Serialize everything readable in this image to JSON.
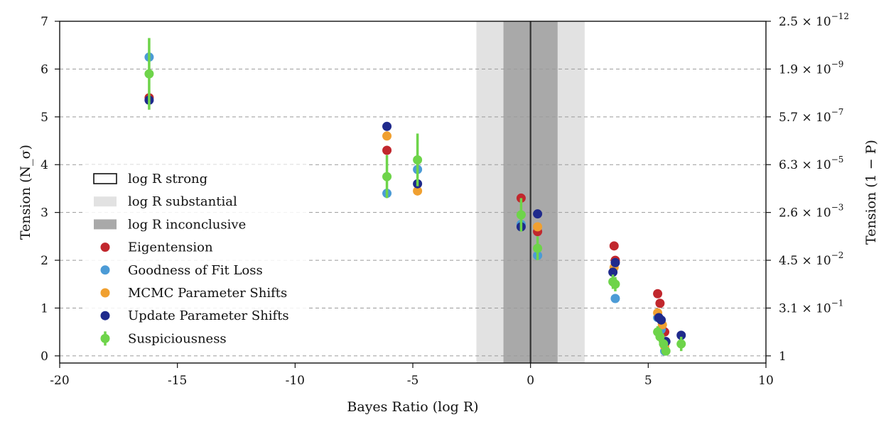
{
  "chart_data": {
    "type": "scatter",
    "xlabel": "Bayes Ratio (log R)",
    "ylabel": "Tension (N_σ)",
    "ylabel_right": "Tension (1 − P)",
    "xlim": [
      -20,
      10
    ],
    "ylim": [
      -0.15,
      7
    ],
    "x_ticks": [
      -20,
      -15,
      -10,
      -5,
      0,
      5,
      10
    ],
    "x_tick_labels": [
      "-20",
      "-15",
      "-10",
      "-5",
      "0",
      "5",
      "10"
    ],
    "y_ticks": [
      0,
      1,
      2,
      3,
      4,
      5,
      6,
      7
    ],
    "y_tick_labels": [
      "0",
      "1",
      "2",
      "3",
      "4",
      "5",
      "6",
      "7"
    ],
    "right_ticks": [
      {
        "y": 7,
        "mant": "2.5 × 10",
        "exp": "−12"
      },
      {
        "y": 6,
        "mant": "1.9 × 10",
        "exp": "−9"
      },
      {
        "y": 5,
        "mant": "5.7 × 10",
        "exp": "−7"
      },
      {
        "y": 4,
        "mant": "6.3 × 10",
        "exp": "−5"
      },
      {
        "y": 3,
        "mant": "2.6 × 10",
        "exp": "−3"
      },
      {
        "y": 2,
        "mant": "4.5 × 10",
        "exp": "−2"
      },
      {
        "y": 1,
        "mant": "3.1 × 10",
        "exp": "−1"
      },
      {
        "y": 0,
        "mant": "1",
        "exp": ""
      }
    ],
    "grid": "horizontal dashed",
    "legend_position": "center-left",
    "bands": [
      {
        "name": "log R substantial",
        "x": [
          -2.3,
          2.3
        ],
        "color": "#e2e2e2"
      },
      {
        "name": "log R inconclusive",
        "x": [
          -1.15,
          1.15
        ],
        "color": "#a9a9a9"
      }
    ],
    "vline": 0,
    "legend": [
      {
        "kind": "box",
        "label": "log R strong"
      },
      {
        "kind": "patch",
        "label": "log R substantial",
        "color": "#e2e2e2"
      },
      {
        "kind": "patch",
        "label": "log R inconclusive",
        "color": "#a9a9a9"
      },
      {
        "kind": "marker",
        "label": "Eigentension",
        "color": "#c1272d"
      },
      {
        "kind": "marker",
        "label": "Goodness of Fit Loss",
        "color": "#4c9bd6"
      },
      {
        "kind": "marker",
        "label": "MCMC Parameter Shifts",
        "color": "#f0a030"
      },
      {
        "kind": "marker",
        "label": "Update Parameter Shifts",
        "color": "#1f2a8c"
      },
      {
        "kind": "errorbar",
        "label": "Suspiciousness",
        "color": "#6ed44a"
      }
    ],
    "series": [
      {
        "name": "Eigentension",
        "color": "#c1272d",
        "points": [
          [
            -16.2,
            5.4
          ],
          [
            -6.1,
            4.3
          ],
          [
            -0.4,
            3.3
          ],
          [
            0.3,
            2.6
          ],
          [
            3.55,
            2.3
          ],
          [
            3.6,
            2.0
          ],
          [
            5.4,
            1.3
          ],
          [
            5.5,
            1.1
          ],
          [
            5.7,
            0.5
          ]
        ]
      },
      {
        "name": "Goodness of Fit Loss",
        "color": "#4c9bd6",
        "points": [
          [
            -16.2,
            6.25
          ],
          [
            -6.1,
            3.4
          ],
          [
            -4.8,
            3.9
          ],
          [
            -0.4,
            2.75
          ],
          [
            0.3,
            2.1
          ],
          [
            3.6,
            1.2
          ],
          [
            5.4,
            0.8
          ],
          [
            5.55,
            0.55
          ],
          [
            5.7,
            0.1
          ]
        ]
      },
      {
        "name": "MCMC Parameter Shifts",
        "color": "#f0a030",
        "points": [
          [
            -6.1,
            4.6
          ],
          [
            -4.8,
            3.45
          ],
          [
            0.3,
            2.7
          ],
          [
            3.55,
            1.85
          ],
          [
            5.4,
            0.9
          ],
          [
            5.6,
            0.65
          ],
          [
            5.7,
            0.2
          ]
        ]
      },
      {
        "name": "Update Parameter Shifts",
        "color": "#1f2a8c",
        "points": [
          [
            -16.2,
            5.35
          ],
          [
            -6.1,
            4.8
          ],
          [
            -4.8,
            3.6
          ],
          [
            -0.4,
            2.7
          ],
          [
            0.3,
            2.97
          ],
          [
            3.5,
            1.75
          ],
          [
            3.6,
            1.95
          ],
          [
            5.45,
            0.8
          ],
          [
            5.55,
            0.75
          ],
          [
            5.75,
            0.3
          ],
          [
            6.4,
            0.43
          ]
        ]
      },
      {
        "name": "Suspiciousness",
        "color": "#6ed44a",
        "points": [
          [
            -16.2,
            5.9,
            0.75
          ],
          [
            -6.1,
            3.75,
            0.45
          ],
          [
            -4.8,
            4.1,
            0.55
          ],
          [
            -0.4,
            2.95,
            0.35
          ],
          [
            0.3,
            2.25,
            0.25
          ],
          [
            3.5,
            1.55,
            0.15
          ],
          [
            3.6,
            1.5,
            0.15
          ],
          [
            5.4,
            0.5,
            0.12
          ],
          [
            5.5,
            0.4,
            0.12
          ],
          [
            5.65,
            0.25,
            0.1
          ],
          [
            5.75,
            0.1,
            0.08
          ],
          [
            6.4,
            0.25,
            0.15
          ]
        ]
      }
    ]
  }
}
